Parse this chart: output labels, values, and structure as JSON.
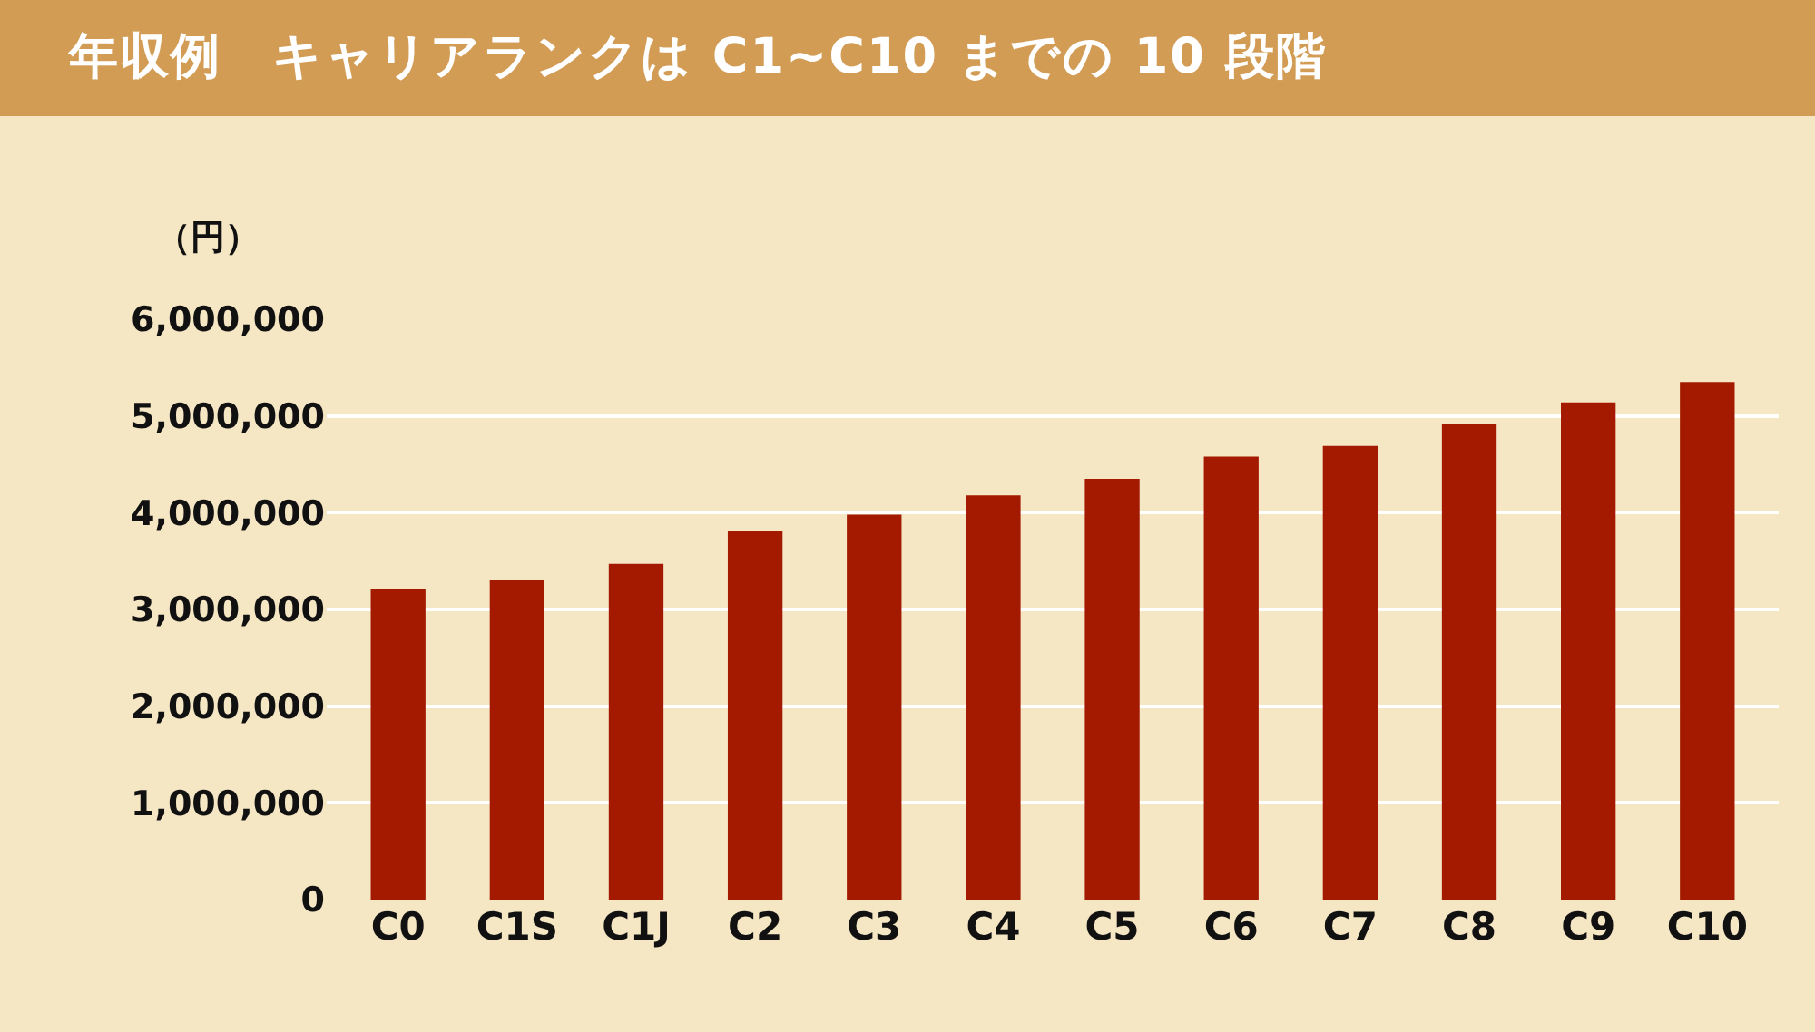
{
  "chart_data": {
    "type": "bar",
    "title": "年収例　キャリアランクは C1~C10 までの 10 段階",
    "ylabel": "（円）",
    "categories": [
      "C0",
      "C1S",
      "C1J",
      "C2",
      "C3",
      "C4",
      "C5",
      "C6",
      "C7",
      "C8",
      "C9",
      "C10"
    ],
    "values": [
      3210000,
      3300000,
      3470000,
      3810000,
      3980000,
      4180000,
      4350000,
      4580000,
      4690000,
      4920000,
      5140000,
      5350000
    ],
    "color": "#a31a00",
    "ylim": [
      0,
      6000000
    ],
    "yticks": [
      0,
      {
        "value": 1000000,
        "label": "1,000,000"
      },
      {
        "value": 2000000,
        "label": "2,000,000"
      },
      {
        "value": 3000000,
        "label": "3,000,000"
      },
      {
        "value": 4000000,
        "label": "4,000,000"
      },
      {
        "value": 5000000,
        "label": "5,000,000"
      },
      {
        "value": 6000000,
        "label": "6,000,000"
      }
    ],
    "grid": "y"
  }
}
